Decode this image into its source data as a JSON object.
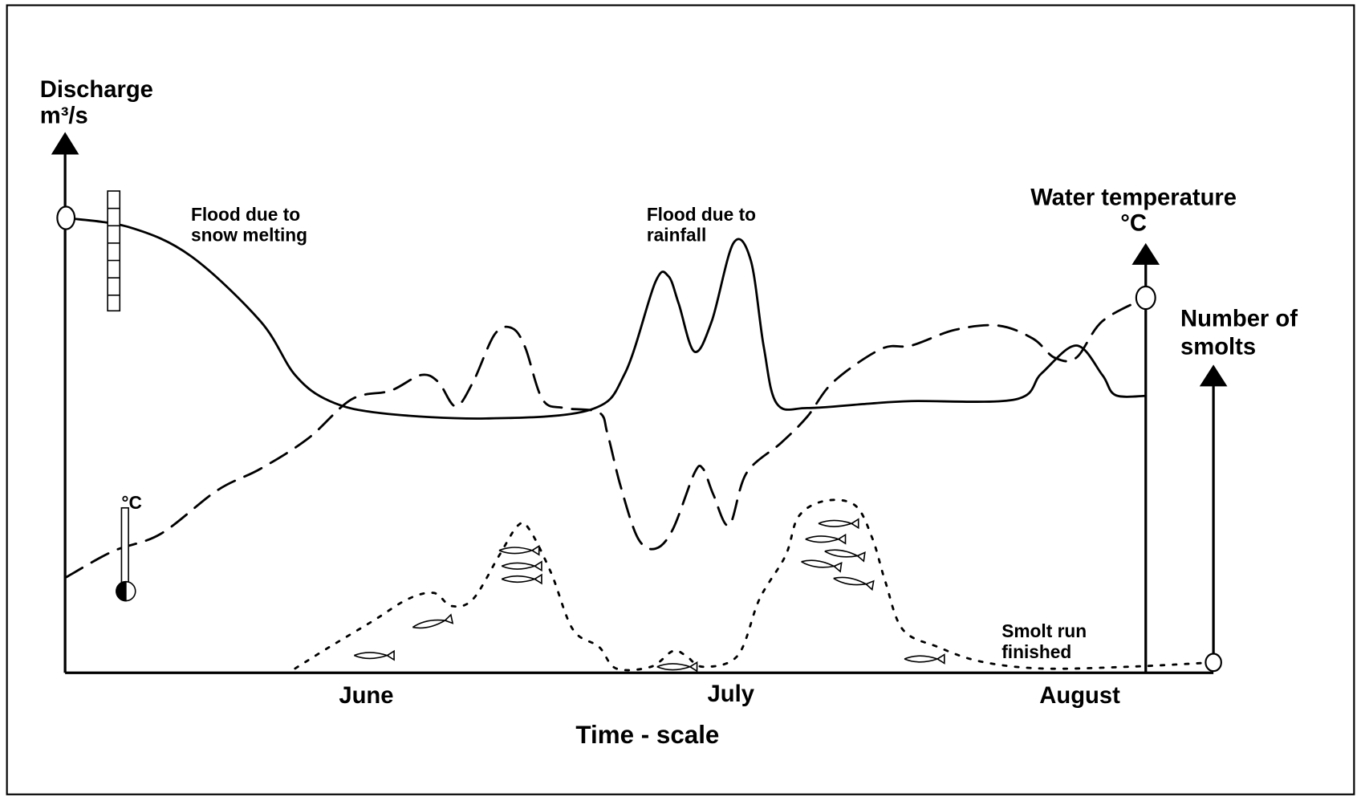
{
  "axes": {
    "discharge": {
      "label": [
        "Discharge",
        "m³/s"
      ]
    },
    "water_temperature": {
      "label": [
        "Water temperature",
        "°C"
      ]
    },
    "smolts": {
      "label": [
        "Number of",
        "smolts"
      ]
    }
  },
  "annotations": {
    "snow_flood": [
      "Flood due to",
      "snow melting"
    ],
    "rain_flood": [
      "Flood due to",
      "rainfall"
    ],
    "smolt_run": [
      "Smolt run",
      "finished"
    ],
    "thermometer": "°C"
  },
  "time_axis": {
    "labels": [
      "June",
      "July",
      "August"
    ],
    "title": "Time - scale"
  }
}
